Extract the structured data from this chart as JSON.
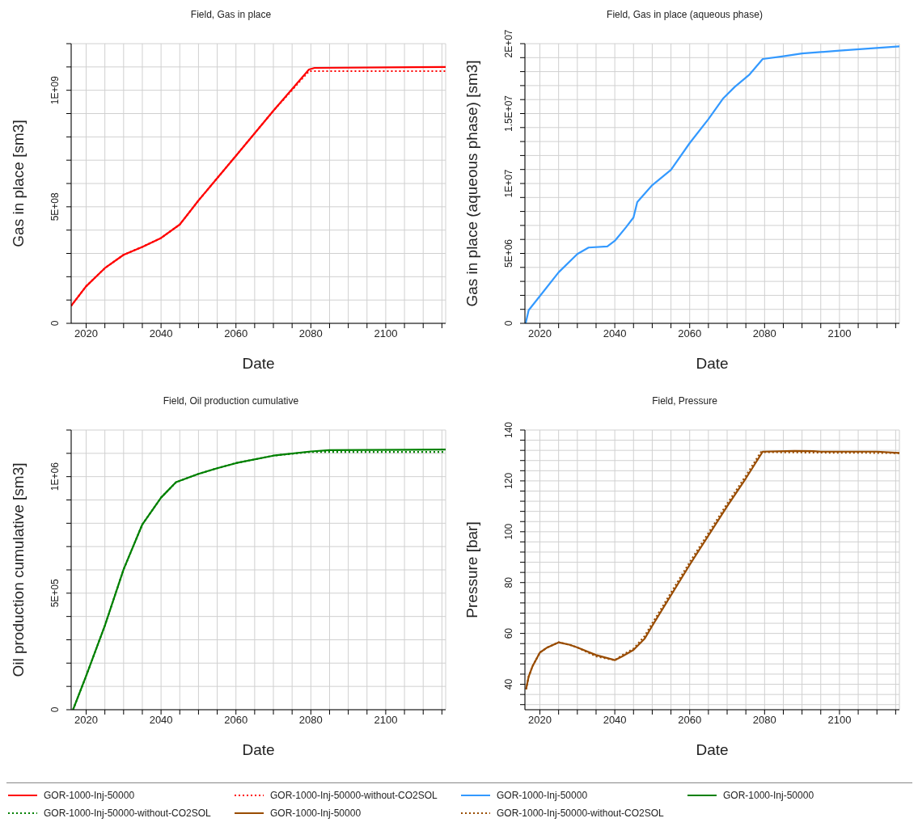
{
  "chart_data": [
    {
      "type": "line",
      "title": "Field, Gas in place",
      "xlabel": "Date",
      "ylabel": "Gas in place [sm3]",
      "grid": true,
      "legend": "bottom",
      "xlim": [
        2016,
        2116
      ],
      "xticks": [
        {
          "value": 2020,
          "label": "2020"
        },
        {
          "value": 2025,
          "label": null
        },
        {
          "value": 2030,
          "label": null
        },
        {
          "value": 2035,
          "label": null
        },
        {
          "value": 2040,
          "label": "2040"
        },
        {
          "value": 2045,
          "label": null
        },
        {
          "value": 2050,
          "label": null
        },
        {
          "value": 2055,
          "label": null
        },
        {
          "value": 2060,
          "label": "2060"
        },
        {
          "value": 2065,
          "label": null
        },
        {
          "value": 2070,
          "label": null
        },
        {
          "value": 2075,
          "label": null
        },
        {
          "value": 2080,
          "label": "2080"
        },
        {
          "value": 2085,
          "label": null
        },
        {
          "value": 2090,
          "label": null
        },
        {
          "value": 2095,
          "label": null
        },
        {
          "value": 2100,
          "label": "2100"
        },
        {
          "value": 2105,
          "label": null
        },
        {
          "value": 2110,
          "label": null
        },
        {
          "value": 2115,
          "label": null
        }
      ],
      "ylim": [
        0,
        1200000000
      ],
      "yticks": [
        {
          "value": 0,
          "label": "0"
        },
        {
          "value": 100000000,
          "label": null
        },
        {
          "value": 200000000,
          "label": null
        },
        {
          "value": 300000000,
          "label": null
        },
        {
          "value": 400000000,
          "label": null
        },
        {
          "value": 500000000,
          "label": "5E+08"
        },
        {
          "value": 600000000,
          "label": null
        },
        {
          "value": 700000000,
          "label": null
        },
        {
          "value": 800000000,
          "label": null
        },
        {
          "value": 900000000,
          "label": null
        },
        {
          "value": 1000000000,
          "label": "1E+09"
        },
        {
          "value": 1100000000,
          "label": null
        },
        {
          "value": 1200000000,
          "label": null
        }
      ],
      "series": [
        {
          "name": "GOR-1000-Inj-50000",
          "color": "#ff0000",
          "line_style": "solid",
          "x": [
            2016,
            2020,
            2025,
            2030,
            2035,
            2040,
            2045,
            2050,
            2060,
            2070,
            2079.5,
            2081,
            2116
          ],
          "values": [
            75000000,
            159000000,
            237000000,
            294000000,
            328000000,
            366000000,
            424000000,
            527000000,
            719000000,
            912000000,
            1089000000,
            1096000000,
            1100000000
          ]
        },
        {
          "name": "GOR-1000-Inj-50000-without-CO2SOL",
          "color": "#ff0000",
          "line_style": "dotted",
          "x": [
            2016,
            2020,
            2025,
            2030,
            2035,
            2040,
            2045,
            2050,
            2060,
            2070,
            2079.5,
            2081,
            2116
          ],
          "values": [
            75000000,
            159000000,
            237000000,
            294000000,
            328000000,
            366000000,
            424000000,
            527000000,
            719000000,
            912000000,
            1082000000,
            1082000000,
            1082000000
          ]
        }
      ]
    },
    {
      "type": "line",
      "title": "Field, Gas in place (aqueous phase)",
      "xlabel": "Date",
      "ylabel": "Gas in place (aqueous phase) [sm3]",
      "grid": true,
      "legend": "bottom",
      "xlim": [
        2016,
        2116
      ],
      "xticks": [
        {
          "value": 2020,
          "label": "2020"
        },
        {
          "value": 2025,
          "label": null
        },
        {
          "value": 2030,
          "label": null
        },
        {
          "value": 2035,
          "label": null
        },
        {
          "value": 2040,
          "label": "2040"
        },
        {
          "value": 2045,
          "label": null
        },
        {
          "value": 2050,
          "label": null
        },
        {
          "value": 2055,
          "label": null
        },
        {
          "value": 2060,
          "label": "2060"
        },
        {
          "value": 2065,
          "label": null
        },
        {
          "value": 2070,
          "label": null
        },
        {
          "value": 2075,
          "label": null
        },
        {
          "value": 2080,
          "label": "2080"
        },
        {
          "value": 2085,
          "label": null
        },
        {
          "value": 2090,
          "label": null
        },
        {
          "value": 2095,
          "label": null
        },
        {
          "value": 2100,
          "label": "2100"
        },
        {
          "value": 2105,
          "label": null
        },
        {
          "value": 2110,
          "label": null
        },
        {
          "value": 2115,
          "label": null
        }
      ],
      "ylim": [
        0,
        20000000
      ],
      "yticks": [
        {
          "value": 0,
          "label": "0"
        },
        {
          "value": 1000000,
          "label": null
        },
        {
          "value": 2000000,
          "label": null
        },
        {
          "value": 3000000,
          "label": null
        },
        {
          "value": 4000000,
          "label": null
        },
        {
          "value": 5000000,
          "label": "5E+06"
        },
        {
          "value": 6000000,
          "label": null
        },
        {
          "value": 7000000,
          "label": null
        },
        {
          "value": 8000000,
          "label": null
        },
        {
          "value": 9000000,
          "label": null
        },
        {
          "value": 10000000,
          "label": "1E+07"
        },
        {
          "value": 11000000,
          "label": null
        },
        {
          "value": 12000000,
          "label": null
        },
        {
          "value": 13000000,
          "label": null
        },
        {
          "value": 14000000,
          "label": null
        },
        {
          "value": 15000000,
          "label": "1.5E+07"
        },
        {
          "value": 16000000,
          "label": null
        },
        {
          "value": 17000000,
          "label": null
        },
        {
          "value": 18000000,
          "label": null
        },
        {
          "value": 19000000,
          "label": null
        },
        {
          "value": 20000000,
          "label": "2E+07"
        }
      ],
      "series": [
        {
          "name": "GOR-1000-Inj-50000",
          "color": "#3399ff",
          "line_style": "solid",
          "x": [
            2016.2,
            2017,
            2020,
            2025,
            2030,
            2033,
            2038,
            2040,
            2043,
            2045,
            2046,
            2050,
            2055,
            2060,
            2065,
            2069,
            2072,
            2076,
            2079.5,
            2085,
            2090,
            2100,
            2116
          ],
          "values": [
            0,
            940000,
            1950000,
            3650000,
            4960000,
            5420000,
            5500000,
            5900000,
            6870000,
            7570000,
            8670000,
            9880000,
            10980000,
            12890000,
            14600000,
            16100000,
            16900000,
            17800000,
            18900000,
            19100000,
            19300000,
            19500000,
            19800000
          ]
        }
      ]
    },
    {
      "type": "line",
      "title": "Field, Oil production cumulative",
      "xlabel": "Date",
      "ylabel": "Oil production cumulative [sm3]",
      "grid": true,
      "legend": "bottom",
      "xlim": [
        2016,
        2116
      ],
      "xticks": [
        {
          "value": 2020,
          "label": "2020"
        },
        {
          "value": 2025,
          "label": null
        },
        {
          "value": 2030,
          "label": null
        },
        {
          "value": 2035,
          "label": null
        },
        {
          "value": 2040,
          "label": "2040"
        },
        {
          "value": 2045,
          "label": null
        },
        {
          "value": 2050,
          "label": null
        },
        {
          "value": 2055,
          "label": null
        },
        {
          "value": 2060,
          "label": "2060"
        },
        {
          "value": 2065,
          "label": null
        },
        {
          "value": 2070,
          "label": null
        },
        {
          "value": 2075,
          "label": null
        },
        {
          "value": 2080,
          "label": "2080"
        },
        {
          "value": 2085,
          "label": null
        },
        {
          "value": 2090,
          "label": null
        },
        {
          "value": 2095,
          "label": null
        },
        {
          "value": 2100,
          "label": "2100"
        },
        {
          "value": 2105,
          "label": null
        },
        {
          "value": 2110,
          "label": null
        },
        {
          "value": 2115,
          "label": null
        }
      ],
      "ylim": [
        0,
        1200000
      ],
      "yticks": [
        {
          "value": 0,
          "label": "0"
        },
        {
          "value": 100000,
          "label": null
        },
        {
          "value": 200000,
          "label": null
        },
        {
          "value": 300000,
          "label": null
        },
        {
          "value": 400000,
          "label": null
        },
        {
          "value": 500000,
          "label": "5E+05"
        },
        {
          "value": 600000,
          "label": null
        },
        {
          "value": 700000,
          "label": null
        },
        {
          "value": 800000,
          "label": null
        },
        {
          "value": 900000,
          "label": null
        },
        {
          "value": 1000000,
          "label": "1E+06"
        },
        {
          "value": 1100000,
          "label": null
        },
        {
          "value": 1200000,
          "label": null
        }
      ],
      "series": [
        {
          "name": "GOR-1000-Inj-50000",
          "color": "#008000",
          "line_style": "solid",
          "x": [
            2016.5,
            2020,
            2025,
            2030,
            2035,
            2040,
            2044,
            2050,
            2055,
            2060,
            2070,
            2080,
            2085,
            2116
          ],
          "values": [
            0,
            145000,
            361000,
            602000,
            795000,
            910000,
            976000,
            1012000,
            1036000,
            1058000,
            1090000,
            1108000,
            1114000,
            1116000
          ]
        },
        {
          "name": "GOR-1000-Inj-50000-without-CO2SOL",
          "color": "#008000",
          "line_style": "dotted",
          "x": [
            2016.5,
            2020,
            2025,
            2030,
            2035,
            2040,
            2044,
            2050,
            2055,
            2060,
            2070,
            2080,
            2085,
            2116
          ],
          "values": [
            0,
            145000,
            361000,
            602000,
            795000,
            910000,
            976000,
            1012000,
            1036000,
            1058000,
            1090000,
            1106000,
            1106000,
            1106000
          ]
        }
      ]
    },
    {
      "type": "line",
      "title": "Field, Pressure",
      "xlabel": "Date",
      "ylabel": "Pressure [bar]",
      "grid": true,
      "legend": "bottom",
      "xlim": [
        2016,
        2116
      ],
      "xticks": [
        {
          "value": 2020,
          "label": "2020"
        },
        {
          "value": 2025,
          "label": null
        },
        {
          "value": 2030,
          "label": null
        },
        {
          "value": 2035,
          "label": null
        },
        {
          "value": 2040,
          "label": "2040"
        },
        {
          "value": 2045,
          "label": null
        },
        {
          "value": 2050,
          "label": null
        },
        {
          "value": 2055,
          "label": null
        },
        {
          "value": 2060,
          "label": "2060"
        },
        {
          "value": 2065,
          "label": null
        },
        {
          "value": 2070,
          "label": null
        },
        {
          "value": 2075,
          "label": null
        },
        {
          "value": 2080,
          "label": "2080"
        },
        {
          "value": 2085,
          "label": null
        },
        {
          "value": 2090,
          "label": null
        },
        {
          "value": 2095,
          "label": null
        },
        {
          "value": 2100,
          "label": "2100"
        },
        {
          "value": 2105,
          "label": null
        },
        {
          "value": 2110,
          "label": null
        },
        {
          "value": 2115,
          "label": null
        }
      ],
      "ylim": [
        30,
        140
      ],
      "yticks": [
        {
          "value": 32,
          "label": null
        },
        {
          "value": 36,
          "label": null
        },
        {
          "value": 40,
          "label": "40"
        },
        {
          "value": 44,
          "label": null
        },
        {
          "value": 48,
          "label": null
        },
        {
          "value": 52,
          "label": null
        },
        {
          "value": 56,
          "label": null
        },
        {
          "value": 60,
          "label": "60"
        },
        {
          "value": 64,
          "label": null
        },
        {
          "value": 68,
          "label": null
        },
        {
          "value": 72,
          "label": null
        },
        {
          "value": 76,
          "label": null
        },
        {
          "value": 80,
          "label": "80"
        },
        {
          "value": 84,
          "label": null
        },
        {
          "value": 88,
          "label": null
        },
        {
          "value": 92,
          "label": null
        },
        {
          "value": 96,
          "label": null
        },
        {
          "value": 100,
          "label": "100"
        },
        {
          "value": 104,
          "label": null
        },
        {
          "value": 108,
          "label": null
        },
        {
          "value": 112,
          "label": null
        },
        {
          "value": 116,
          "label": null
        },
        {
          "value": 120,
          "label": "120"
        },
        {
          "value": 124,
          "label": null
        },
        {
          "value": 128,
          "label": null
        },
        {
          "value": 132,
          "label": null
        },
        {
          "value": 136,
          "label": null
        },
        {
          "value": 140,
          "label": "140"
        }
      ],
      "series": [
        {
          "name": "GOR-1000-Inj-50000",
          "color": "#994c00",
          "line_style": "solid",
          "x": [
            2016.3,
            2017,
            2018,
            2020,
            2022,
            2025,
            2028,
            2030,
            2035,
            2040,
            2042,
            2045,
            2048,
            2050,
            2060,
            2070,
            2075,
            2079.5,
            2088,
            2093,
            2095,
            2110,
            2116
          ],
          "values": [
            38,
            43,
            47,
            52.5,
            54.5,
            56.5,
            55.5,
            54.5,
            51.5,
            49.5,
            51,
            53.5,
            58,
            63,
            87,
            110,
            121,
            131.5,
            131.8,
            131.7,
            131.5,
            131.5,
            131
          ]
        },
        {
          "name": "GOR-1000-Inj-50000-without-CO2SOL",
          "color": "#994c00",
          "line_style": "dotted",
          "x": [
            2016.3,
            2017,
            2018,
            2020,
            2022,
            2025,
            2028,
            2030,
            2035,
            2040,
            2042,
            2045,
            2048,
            2050,
            2060,
            2070,
            2075,
            2079,
            2088,
            2095,
            2110,
            2116
          ],
          "values": [
            38,
            43,
            47,
            52.5,
            54.5,
            56.5,
            55.5,
            54.5,
            51,
            49.5,
            51.5,
            54,
            59,
            64,
            88,
            111,
            122,
            131.3,
            131.2,
            131.1,
            131,
            130.9
          ]
        }
      ]
    }
  ]
}
